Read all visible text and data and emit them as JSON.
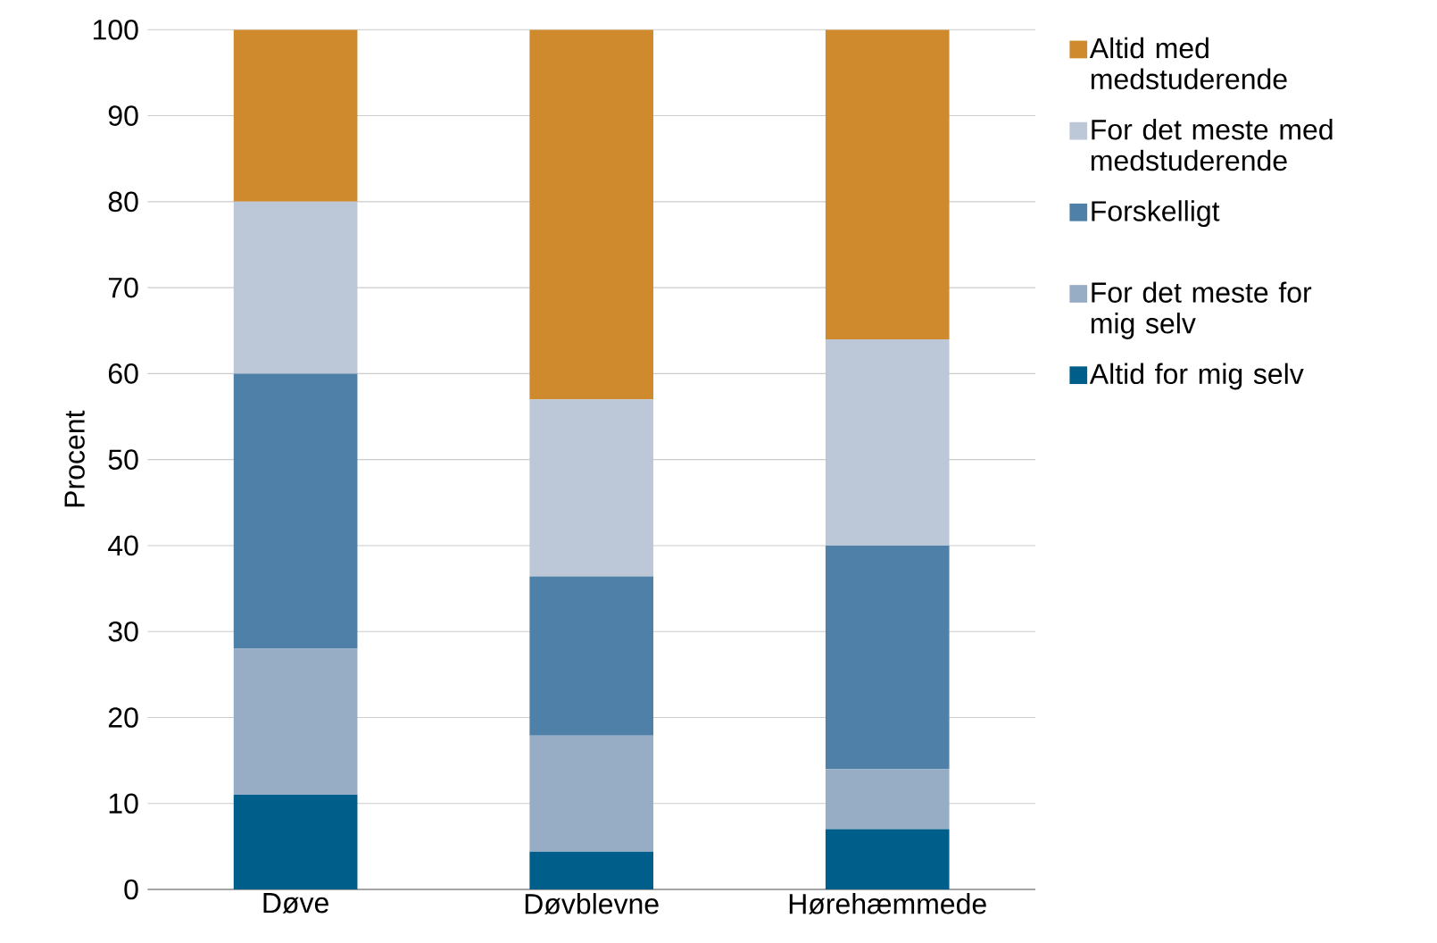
{
  "chart_data": {
    "type": "bar",
    "stacked": true,
    "ylabel": "Procent",
    "categories": [
      "Døve",
      "Døvblevne",
      "Hørehæmmede"
    ],
    "series": [
      {
        "name": "Altid for mig selv",
        "color": "#005f8a",
        "values": [
          11,
          4.4,
          7
        ]
      },
      {
        "name": "For det meste for mig selv",
        "color": "#97adc6",
        "values": [
          17,
          13.5,
          7
        ]
      },
      {
        "name": "Forskelligt",
        "color": "#4f81a8",
        "values": [
          32,
          18.5,
          26
        ]
      },
      {
        "name": "For det meste med medstuderende",
        "color": "#bcc8d8",
        "values": [
          20,
          20.6,
          24
        ]
      },
      {
        "name": "Altid med medstuderende",
        "color": "#d08a2e",
        "values": [
          20,
          43,
          36
        ]
      }
    ],
    "ylim": [
      0,
      100
    ],
    "yticks": [
      0,
      10,
      20,
      30,
      40,
      50,
      60,
      70,
      80,
      90,
      100
    ],
    "grid": "y",
    "legend": "right"
  }
}
